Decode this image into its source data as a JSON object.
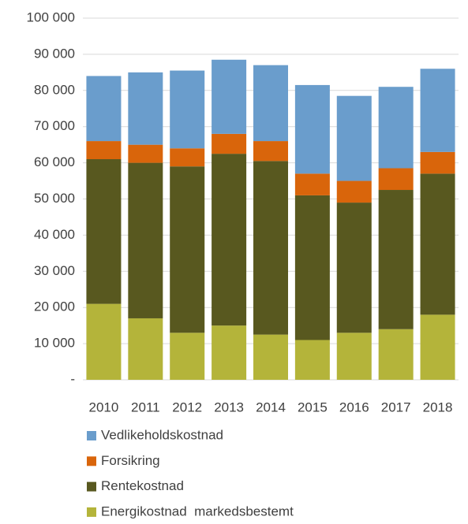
{
  "chart_data": {
    "type": "stacked_bar",
    "categories": [
      "2010",
      "2011",
      "2012",
      "2013",
      "2014",
      "2015",
      "2016",
      "2017",
      "2018"
    ],
    "series": [
      {
        "name": "Energikostnad  markedsbestemt",
        "color": "#b4b43a",
        "values": [
          21000,
          17000,
          13000,
          15000,
          12500,
          11000,
          13000,
          14000,
          18000
        ]
      },
      {
        "name": "Rentekostnad",
        "color": "#58581f",
        "values": [
          40000,
          43000,
          46000,
          47500,
          48000,
          40000,
          36000,
          38500,
          39000
        ]
      },
      {
        "name": "Forsikring",
        "color": "#d9650b",
        "values": [
          5000,
          5000,
          5000,
          5500,
          5500,
          6000,
          6000,
          6000,
          6000
        ]
      },
      {
        "name": "Vedlikeholdskostnad",
        "color": "#6a9dcc",
        "values": [
          18000,
          20000,
          21500,
          20500,
          21000,
          24500,
          23500,
          22500,
          23000
        ]
      }
    ],
    "ylim": [
      0,
      100000
    ],
    "yticks": [
      {
        "value": 0,
        "label": "-"
      },
      {
        "value": 10000,
        "label": "10 000"
      },
      {
        "value": 20000,
        "label": "20 000"
      },
      {
        "value": 30000,
        "label": "30 000"
      },
      {
        "value": 40000,
        "label": "40 000"
      },
      {
        "value": 50000,
        "label": "50 000"
      },
      {
        "value": 60000,
        "label": "60 000"
      },
      {
        "value": 70000,
        "label": "70 000"
      },
      {
        "value": 80000,
        "label": "80 000"
      },
      {
        "value": 90000,
        "label": "90 000"
      },
      {
        "value": 100000,
        "label": "100 000"
      }
    ],
    "grid": true,
    "legend": "bottom"
  }
}
